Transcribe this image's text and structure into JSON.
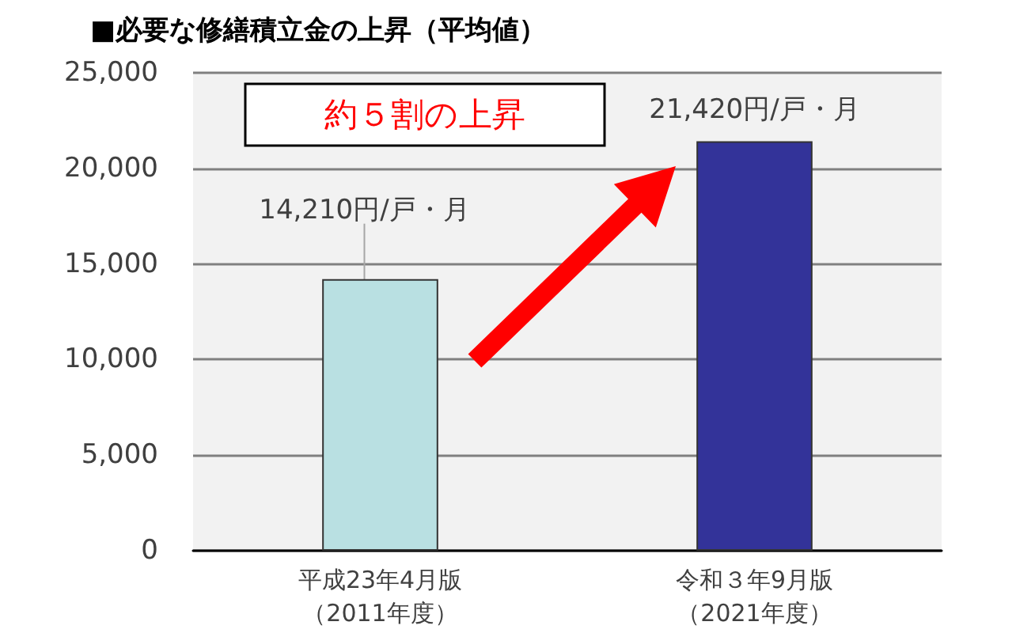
{
  "chart_data": {
    "type": "bar",
    "title": "■必要な修繕積立金の上昇（平均値）",
    "categories": [
      "平成23年4月版（2011年度）",
      "令和３年9月版（2021年度）"
    ],
    "values": [
      14210,
      21420
    ],
    "colors": [
      "#b9e0e2",
      "#333399"
    ],
    "value_labels": [
      "14,210円/戸・月",
      "21,420円/戸・月"
    ],
    "ylim": [
      0,
      25000
    ],
    "yticks": [
      0,
      {
        "value": 5000,
        "label": "5,000"
      },
      {
        "value": 10000,
        "label": "10,000"
      },
      {
        "value": 15000,
        "label": "15,000"
      },
      {
        "value": 20000,
        "label": "20,000"
      },
      {
        "value": 25000,
        "label": "25,000"
      }
    ],
    "grid": "y",
    "annotations": [
      "約５割の上昇"
    ]
  }
}
